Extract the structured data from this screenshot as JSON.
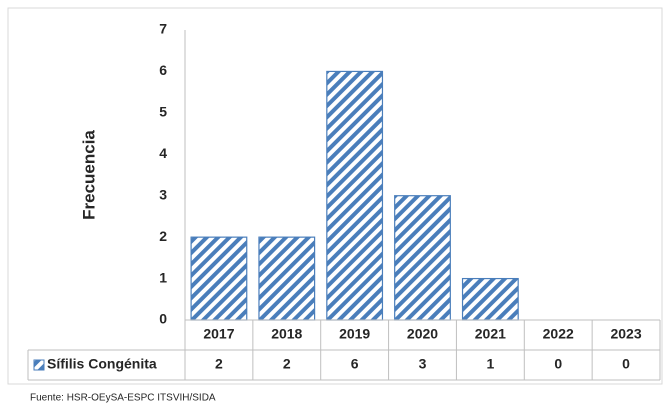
{
  "chart_data": {
    "type": "bar",
    "ylabel": "Frecuencia",
    "categories": [
      "2017",
      "2018",
      "2019",
      "2020",
      "2021",
      "2022",
      "2023"
    ],
    "series": [
      {
        "name": "Sífilis Congénita",
        "color": "#4a7ebb",
        "values": [
          2,
          2,
          6,
          3,
          1,
          0,
          0
        ]
      }
    ],
    "ylim": [
      0,
      7
    ],
    "yticks": [
      0,
      1,
      2,
      3,
      4,
      5,
      6,
      7
    ],
    "grid": false,
    "source": "Fuente: HSR-OEySA-ESPC ITSVIH/SIDA"
  }
}
